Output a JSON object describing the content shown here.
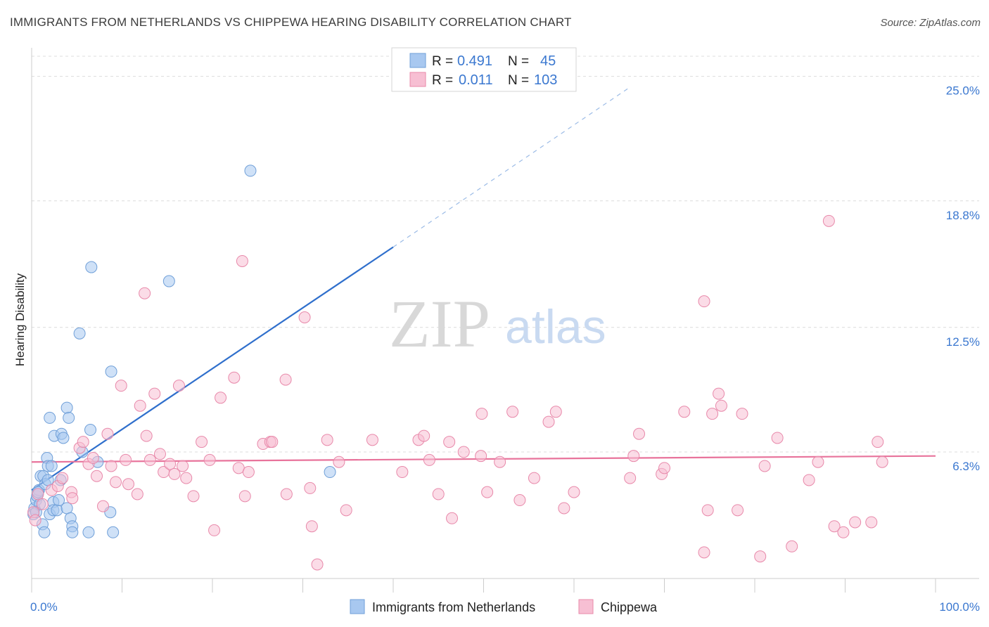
{
  "title": "IMMIGRANTS FROM NETHERLANDS VS CHIPPEWA HEARING DISABILITY CORRELATION CHART",
  "source": "Source: ZipAtlas.com",
  "chart_data": {
    "type": "scatter",
    "xlabel": "",
    "ylabel": "Hearing Disability",
    "xlim": [
      0,
      100
    ],
    "ylim": [
      0,
      26.0
    ],
    "x_tick_labels": [
      "0.0%",
      "100.0%"
    ],
    "y_ticks": [
      6.3,
      12.5,
      18.8,
      25.0
    ],
    "y_tick_labels": [
      "6.3%",
      "12.5%",
      "18.8%",
      "25.0%"
    ],
    "legend": {
      "r_label": "R =",
      "n_label": "N =",
      "entries": [
        {
          "r": "0.491",
          "n": "45"
        },
        {
          "r": "0.011",
          "n": "103"
        }
      ]
    },
    "series": [
      {
        "name": "Immigrants from Netherlands",
        "color": "#a8c8f0",
        "stroke": "#6f9fd8",
        "trend": {
          "x0": 0,
          "y0": 4.4,
          "x1": 40,
          "y1": 16.5,
          "dash_to_x": 66,
          "dash_to_y": 24.4,
          "color": "#2f6fcc"
        },
        "points": [
          [
            0.3,
            3.5
          ],
          [
            0.5,
            3.9
          ],
          [
            0.6,
            4.1
          ],
          [
            0.8,
            4.4
          ],
          [
            0.9,
            3.7
          ],
          [
            1.0,
            5.1
          ],
          [
            1.2,
            2.7
          ],
          [
            1.3,
            5.1
          ],
          [
            1.4,
            2.3
          ],
          [
            1.5,
            4.7
          ],
          [
            1.7,
            6.0
          ],
          [
            1.8,
            5.6
          ],
          [
            2.0,
            3.2
          ],
          [
            2.0,
            8.0
          ],
          [
            2.2,
            5.6
          ],
          [
            2.4,
            3.8
          ],
          [
            2.4,
            3.4
          ],
          [
            2.5,
            7.1
          ],
          [
            2.8,
            3.4
          ],
          [
            3.0,
            3.9
          ],
          [
            3.2,
            4.9
          ],
          [
            3.3,
            7.2
          ],
          [
            3.5,
            7.0
          ],
          [
            3.9,
            3.5
          ],
          [
            3.9,
            8.5
          ],
          [
            4.1,
            8.0
          ],
          [
            4.3,
            3.0
          ],
          [
            4.5,
            2.6
          ],
          [
            4.5,
            2.3
          ],
          [
            5.3,
            12.2
          ],
          [
            5.6,
            6.3
          ],
          [
            6.3,
            2.3
          ],
          [
            6.5,
            7.4
          ],
          [
            6.6,
            15.5
          ],
          [
            7.3,
            5.8
          ],
          [
            8.7,
            3.3
          ],
          [
            8.8,
            10.3
          ],
          [
            9.0,
            2.3
          ],
          [
            15.2,
            14.8
          ],
          [
            24.2,
            20.3
          ],
          [
            33.0,
            5.3
          ],
          [
            0.2,
            3.2
          ],
          [
            0.7,
            4.3
          ],
          [
            0.5,
            3.3
          ],
          [
            1.8,
            4.9
          ]
        ]
      },
      {
        "name": "Chippewa",
        "color": "#f7bfd3",
        "stroke": "#e889aa",
        "trend": {
          "x0": 0,
          "y0": 5.8,
          "x1": 100,
          "y1": 6.1,
          "color": "#e8739b"
        },
        "points": [
          [
            0.2,
            3.3
          ],
          [
            0.4,
            2.9
          ],
          [
            0.7,
            4.2
          ],
          [
            1.2,
            3.7
          ],
          [
            2.2,
            4.4
          ],
          [
            2.9,
            4.6
          ],
          [
            3.4,
            5.0
          ],
          [
            4.4,
            4.3
          ],
          [
            4.5,
            4.0
          ],
          [
            5.3,
            6.5
          ],
          [
            5.7,
            6.8
          ],
          [
            6.3,
            5.7
          ],
          [
            6.8,
            6.0
          ],
          [
            7.2,
            5.1
          ],
          [
            7.9,
            3.6
          ],
          [
            8.4,
            7.2
          ],
          [
            8.8,
            5.6
          ],
          [
            9.3,
            4.8
          ],
          [
            9.9,
            9.6
          ],
          [
            10.4,
            5.9
          ],
          [
            10.7,
            4.7
          ],
          [
            11.7,
            4.2
          ],
          [
            12.0,
            8.6
          ],
          [
            12.5,
            14.2
          ],
          [
            12.7,
            7.1
          ],
          [
            13.1,
            5.9
          ],
          [
            13.6,
            9.2
          ],
          [
            14.2,
            6.2
          ],
          [
            14.6,
            5.3
          ],
          [
            15.3,
            5.7
          ],
          [
            15.8,
            5.2
          ],
          [
            16.3,
            9.6
          ],
          [
            16.7,
            5.6
          ],
          [
            17.1,
            5.0
          ],
          [
            17.9,
            4.1
          ],
          [
            18.8,
            6.8
          ],
          [
            19.7,
            5.9
          ],
          [
            20.2,
            2.4
          ],
          [
            20.9,
            9.0
          ],
          [
            22.4,
            10.0
          ],
          [
            22.9,
            5.5
          ],
          [
            23.6,
            4.1
          ],
          [
            24.0,
            5.3
          ],
          [
            23.3,
            15.8
          ],
          [
            25.6,
            6.7
          ],
          [
            26.4,
            6.8
          ],
          [
            26.6,
            6.8
          ],
          [
            28.1,
            9.9
          ],
          [
            28.2,
            4.2
          ],
          [
            30.2,
            13.0
          ],
          [
            30.8,
            4.5
          ],
          [
            31.0,
            2.6
          ],
          [
            31.6,
            0.7
          ],
          [
            32.7,
            6.9
          ],
          [
            34.0,
            5.8
          ],
          [
            34.8,
            3.4
          ],
          [
            37.7,
            6.9
          ],
          [
            41.0,
            5.3
          ],
          [
            42.8,
            6.9
          ],
          [
            43.4,
            7.1
          ],
          [
            44.0,
            5.9
          ],
          [
            45.0,
            4.2
          ],
          [
            46.2,
            6.8
          ],
          [
            46.5,
            3.0
          ],
          [
            47.8,
            6.3
          ],
          [
            49.7,
            6.1
          ],
          [
            49.8,
            8.2
          ],
          [
            50.4,
            4.3
          ],
          [
            51.8,
            5.8
          ],
          [
            53.2,
            8.3
          ],
          [
            54.0,
            3.9
          ],
          [
            55.6,
            5.0
          ],
          [
            57.2,
            7.8
          ],
          [
            58.0,
            8.3
          ],
          [
            58.9,
            3.5
          ],
          [
            60.0,
            4.3
          ],
          [
            66.2,
            5.0
          ],
          [
            66.6,
            6.1
          ],
          [
            67.2,
            7.2
          ],
          [
            69.7,
            5.2
          ],
          [
            70.0,
            5.5
          ],
          [
            72.2,
            8.3
          ],
          [
            74.4,
            1.3
          ],
          [
            74.8,
            3.4
          ],
          [
            75.3,
            8.2
          ],
          [
            76.0,
            9.2
          ],
          [
            76.3,
            8.6
          ],
          [
            78.1,
            3.4
          ],
          [
            78.6,
            8.2
          ],
          [
            80.6,
            1.1
          ],
          [
            81.1,
            5.6
          ],
          [
            82.5,
            7.0
          ],
          [
            84.1,
            1.6
          ],
          [
            86.0,
            4.9
          ],
          [
            87.0,
            5.8
          ],
          [
            88.2,
            17.8
          ],
          [
            88.8,
            2.6
          ],
          [
            89.8,
            2.3
          ],
          [
            91.1,
            2.8
          ],
          [
            93.6,
            6.8
          ],
          [
            94.1,
            5.8
          ],
          [
            74.4,
            13.8
          ],
          [
            92.9,
            2.8
          ]
        ]
      }
    ]
  }
}
